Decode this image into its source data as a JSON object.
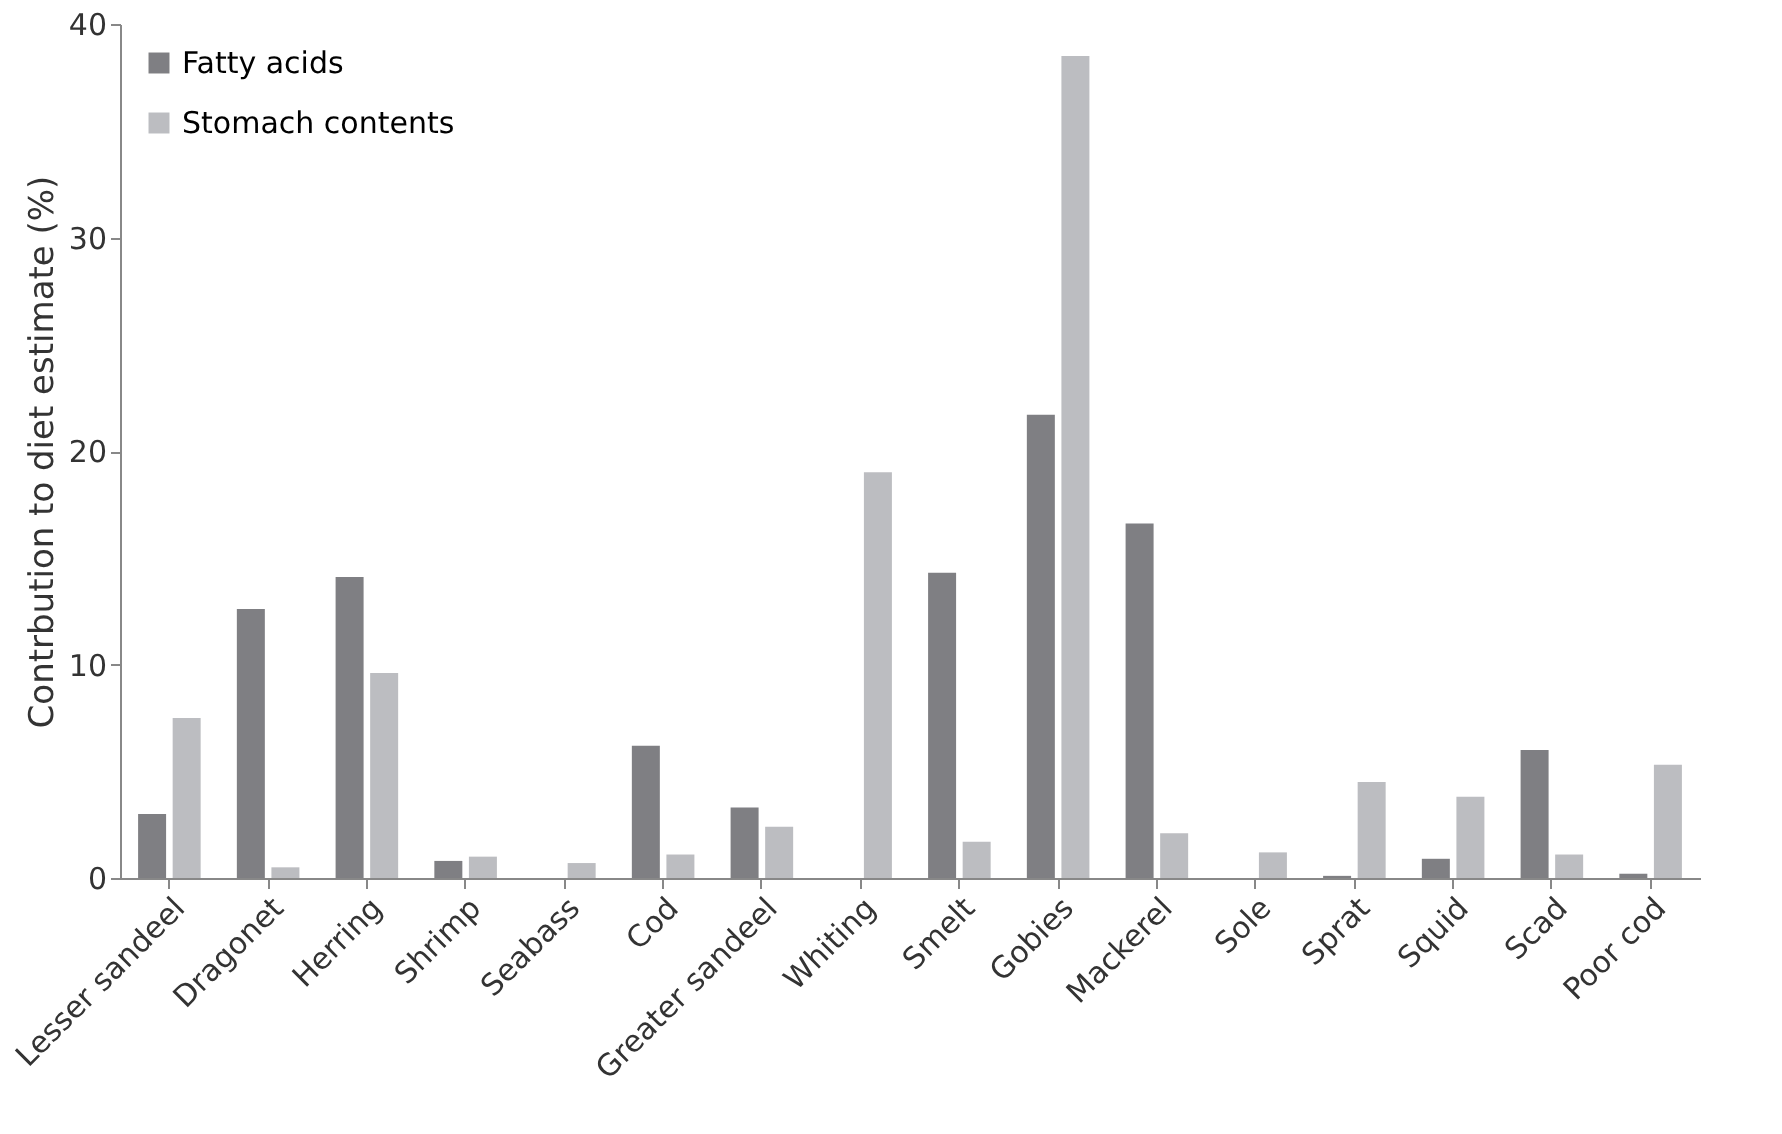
{
  "chart_data": {
    "type": "bar",
    "ylabel": "Contrbution to diet estimate (%)",
    "categories": [
      "Lesser sandeel",
      "Dragonet",
      "Herring",
      "Shrimp",
      "Seabass",
      "Cod",
      "Greater sandeel",
      "Whiting",
      "Smelt",
      "Gobies",
      "Mackerel",
      "Sole",
      "Sprat",
      "Squid",
      "Scad",
      "Poor cod"
    ],
    "series": [
      {
        "name": "Fatty acids",
        "color": "#7f7f83",
        "values": [
          3.0,
          12.6,
          14.1,
          0.8,
          0,
          6.2,
          3.3,
          0,
          14.3,
          21.7,
          16.6,
          0,
          0.1,
          0.9,
          6.0,
          0.2
        ]
      },
      {
        "name": "Stomach contents",
        "color": "#bcbdc1",
        "values": [
          7.5,
          0.5,
          9.6,
          1.0,
          0.7,
          1.1,
          2.4,
          19.0,
          1.7,
          38.5,
          2.1,
          1.2,
          4.5,
          3.8,
          1.1,
          5.3
        ]
      }
    ],
    "ylim": [
      0,
      40
    ],
    "yticks": [
      0,
      10,
      20,
      30,
      40
    ],
    "grid": false,
    "legend": "top left"
  }
}
